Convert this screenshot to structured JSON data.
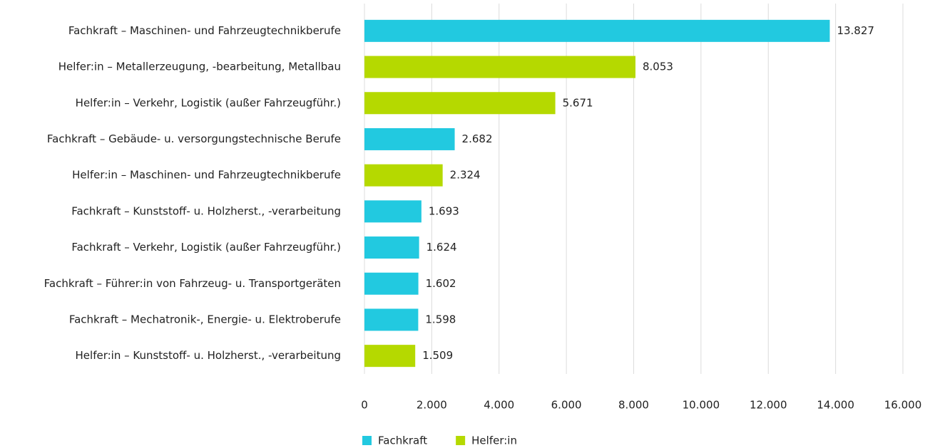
{
  "chart_data": {
    "type": "barh",
    "categories": [
      "Fachkraft – Maschinen- und Fahrzeugtechnikberufe",
      "Helfer:in – Metallerzeugung, -bearbeitung, Metallbau",
      "Helfer:in – Verkehr, Logistik (außer Fahrzeugführ.)",
      "Fachkraft – Gebäude- u. versorgungstechnische Berufe",
      "Helfer:in – Maschinen- und Fahrzeugtechnikberufe",
      "Fachkraft – Kunststoff- u. Holzherst., -verarbeitung",
      "Fachkraft – Verkehr, Logistik (außer Fahrzeugführ.)",
      "Fachkraft – Führer:in von Fahrzeug- u. Transportgeräten",
      "Fachkraft – Mechatronik-, Energie- u. Elektroberufe",
      "Helfer:in – Kunststoff- u. Holzherst., -verarbeitung"
    ],
    "series": [
      {
        "name": "Fachkraft",
        "color": "#22c9e0",
        "values": [
          13827,
          null,
          null,
          2682,
          null,
          1693,
          1624,
          1602,
          1598,
          null
        ],
        "value_labels": [
          "13.827",
          null,
          null,
          "2.682",
          null,
          "1.693",
          "1.624",
          "1.602",
          "1.598",
          null
        ]
      },
      {
        "name": "Helfer:in",
        "color": "#b5d900",
        "values": [
          null,
          8053,
          5671,
          null,
          2324,
          null,
          null,
          null,
          null,
          1509
        ],
        "value_labels": [
          null,
          "8.053",
          "5.671",
          null,
          "2.324",
          null,
          null,
          null,
          null,
          "1.509"
        ]
      }
    ],
    "xlim": [
      0,
      16000
    ],
    "xticks": [
      0,
      {
        "value": 2000,
        "label": "2.000"
      },
      {
        "value": 4000,
        "label": "4.000"
      },
      {
        "value": 6000,
        "label": "6.000"
      },
      {
        "value": 8000,
        "label": "8.000"
      },
      {
        "value": 10000,
        "label": "10.000"
      },
      {
        "value": 12000,
        "label": "12.000"
      },
      {
        "value": 14000,
        "label": "14.000"
      },
      {
        "value": 16000,
        "label": "16.000"
      }
    ],
    "grid": true,
    "legend": "bottom"
  }
}
